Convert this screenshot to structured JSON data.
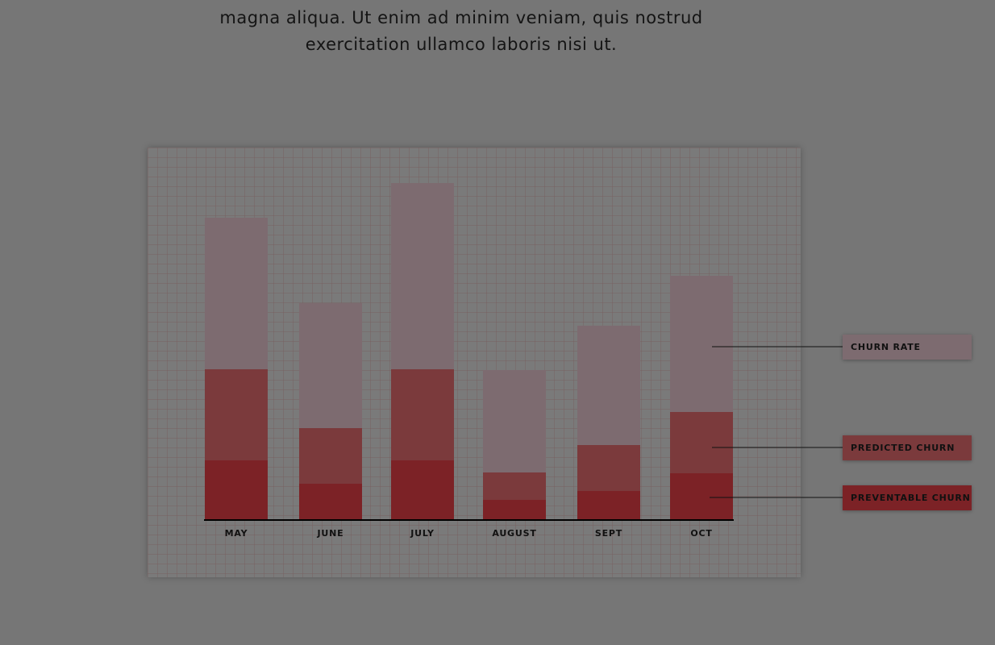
{
  "intro": {
    "lines": [
      "magna aliqua. Ut enim ad minim veniam, quis nostrud",
      "exercitation ullamco laboris nisi ut."
    ]
  },
  "chart_data": {
    "type": "stacked-bar",
    "categories": [
      "MAY",
      "JUNE",
      "JULY",
      "AUGUST",
      "SEPT",
      "OCT"
    ],
    "series": [
      {
        "name": "PREVENTABLE CHURN",
        "color": "#7c2226",
        "values": [
          74,
          45,
          74,
          25,
          36,
          58
        ]
      },
      {
        "name": "PREDICTED CHURN",
        "color": "#7b3a3c",
        "values": [
          113,
          69,
          113,
          34,
          57,
          76
        ]
      },
      {
        "name": "CHURN RATE",
        "color": "#7d6b70",
        "values": [
          188,
          155,
          231,
          127,
          148,
          169
        ]
      }
    ]
  }
}
